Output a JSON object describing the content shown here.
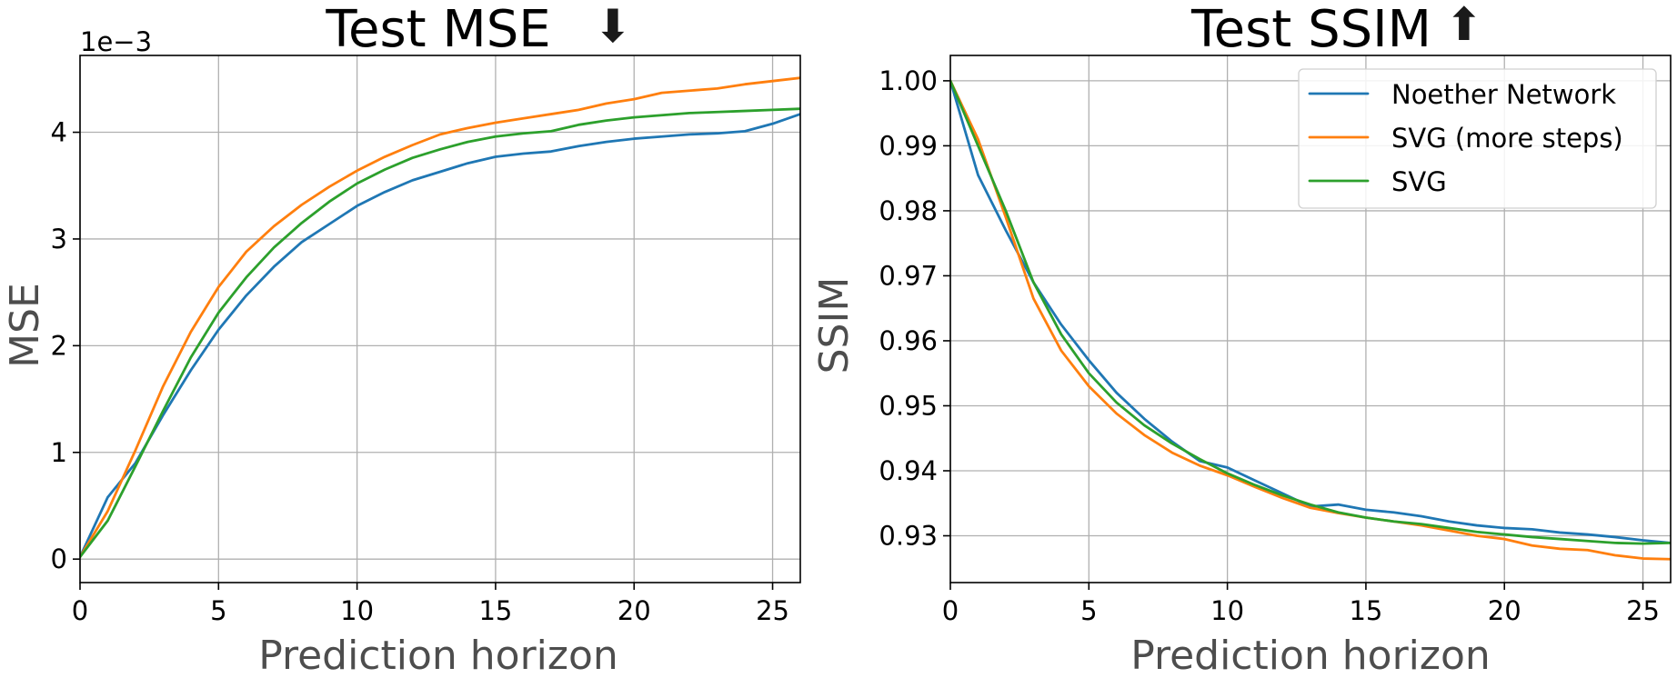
{
  "chart_data": [
    {
      "type": "line",
      "title": "Test MSE",
      "title_arrow": "⬇",
      "xlabel": "Prediction horizon",
      "ylabel": "MSE",
      "offset_text": "1e−3",
      "xlim": [
        0,
        26
      ],
      "ylim": [
        -0.22,
        4.72
      ],
      "xticks": [
        0,
        5,
        10,
        15,
        20,
        25
      ],
      "xtick_labels": [
        "0",
        "5",
        "10",
        "15",
        "20",
        "25"
      ],
      "yticks": [
        0,
        1,
        2,
        3,
        4
      ],
      "ytick_labels": [
        "0",
        "1",
        "2",
        "3",
        "4"
      ],
      "grid": true,
      "x": [
        0,
        1,
        2,
        3,
        4,
        5,
        6,
        7,
        8,
        9,
        10,
        11,
        12,
        13,
        14,
        15,
        16,
        17,
        18,
        19,
        20,
        21,
        22,
        23,
        24,
        25,
        26
      ],
      "series": [
        {
          "name": "Noether Network",
          "color": "#1f77b4",
          "values": [
            0.02,
            0.58,
            0.9,
            1.35,
            1.77,
            2.15,
            2.47,
            2.74,
            2.97,
            3.14,
            3.31,
            3.44,
            3.55,
            3.63,
            3.71,
            3.77,
            3.8,
            3.82,
            3.87,
            3.91,
            3.94,
            3.96,
            3.98,
            3.99,
            4.01,
            4.08,
            4.17
          ]
        },
        {
          "name": "SVG (more steps)",
          "color": "#ff7f0e",
          "values": [
            0.02,
            0.45,
            1.02,
            1.62,
            2.13,
            2.55,
            2.88,
            3.12,
            3.32,
            3.49,
            3.64,
            3.77,
            3.88,
            3.98,
            4.04,
            4.09,
            4.13,
            4.17,
            4.21,
            4.27,
            4.31,
            4.37,
            4.39,
            4.41,
            4.45,
            4.48,
            4.51
          ]
        },
        {
          "name": "SVG",
          "color": "#2ca02c",
          "values": [
            0.02,
            0.36,
            0.87,
            1.39,
            1.89,
            2.31,
            2.64,
            2.92,
            3.15,
            3.35,
            3.52,
            3.65,
            3.76,
            3.84,
            3.91,
            3.96,
            3.99,
            4.01,
            4.07,
            4.11,
            4.14,
            4.16,
            4.18,
            4.19,
            4.2,
            4.21,
            4.22
          ]
        }
      ]
    },
    {
      "type": "line",
      "title": "Test SSIM",
      "title_arrow": "⬆",
      "xlabel": "Prediction horizon",
      "ylabel": "SSIM",
      "xlim": [
        0,
        26
      ],
      "ylim": [
        0.9228,
        1.0039
      ],
      "xticks": [
        0,
        5,
        10,
        15,
        20,
        25
      ],
      "xtick_labels": [
        "0",
        "5",
        "10",
        "15",
        "20",
        "25"
      ],
      "yticks": [
        0.93,
        0.94,
        0.95,
        0.96,
        0.97,
        0.98,
        0.99,
        1.0
      ],
      "ytick_labels": [
        "0.93",
        "0.94",
        "0.95",
        "0.96",
        "0.97",
        "0.98",
        "0.99",
        "1.00"
      ],
      "grid": true,
      "legend_location": "top-right",
      "x": [
        0,
        1,
        2,
        3,
        4,
        5,
        6,
        7,
        8,
        9,
        10,
        11,
        12,
        13,
        14,
        15,
        16,
        17,
        18,
        19,
        20,
        21,
        22,
        23,
        24,
        25,
        26
      ],
      "series": [
        {
          "name": "Noether Network",
          "color": "#1f77b4",
          "values": [
            1.0,
            0.9855,
            0.977,
            0.969,
            0.9625,
            0.957,
            0.952,
            0.948,
            0.9445,
            0.9415,
            0.9405,
            0.9385,
            0.9365,
            0.9345,
            0.9348,
            0.934,
            0.9336,
            0.933,
            0.9322,
            0.9316,
            0.9312,
            0.931,
            0.9305,
            0.9302,
            0.9298,
            0.9293,
            0.9289
          ]
        },
        {
          "name": "SVG (more steps)",
          "color": "#ff7f0e",
          "values": [
            1.0,
            0.991,
            0.979,
            0.9665,
            0.9585,
            0.953,
            0.9488,
            0.9455,
            0.9428,
            0.9408,
            0.9393,
            0.9375,
            0.9358,
            0.9343,
            0.9335,
            0.9328,
            0.9322,
            0.9316,
            0.9308,
            0.93,
            0.9295,
            0.9285,
            0.928,
            0.9278,
            0.927,
            0.9265,
            0.9264
          ]
        },
        {
          "name": "SVG",
          "color": "#2ca02c",
          "values": [
            1.0,
            0.99,
            0.98,
            0.969,
            0.961,
            0.955,
            0.9505,
            0.947,
            0.9442,
            0.9418,
            0.9396,
            0.9378,
            0.9362,
            0.9348,
            0.9336,
            0.9328,
            0.9322,
            0.9318,
            0.9312,
            0.9306,
            0.9302,
            0.9298,
            0.9295,
            0.9292,
            0.9289,
            0.9288,
            0.9289
          ]
        }
      ]
    }
  ]
}
